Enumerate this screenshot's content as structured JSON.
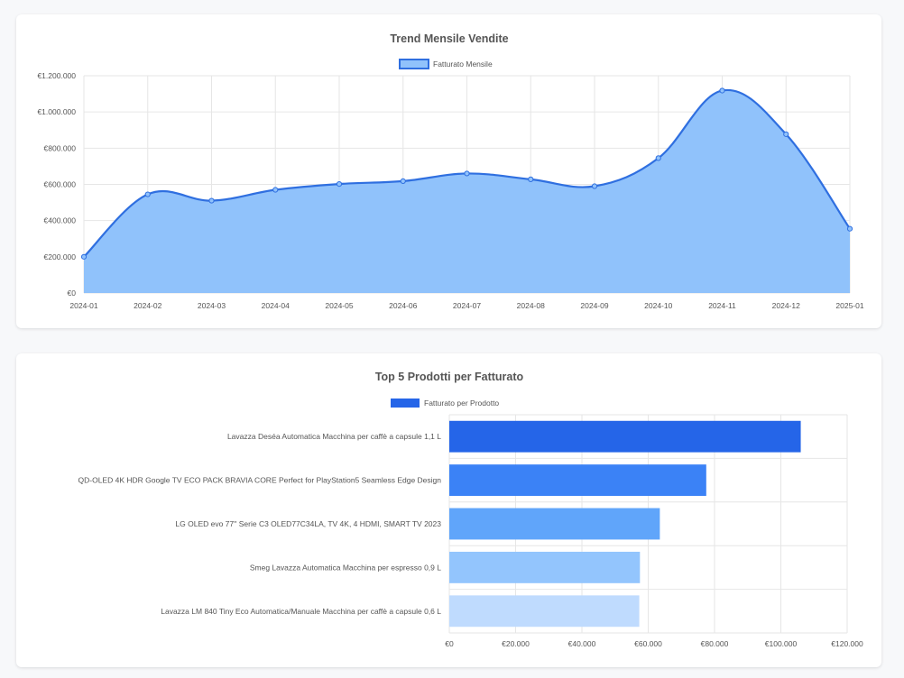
{
  "line_chart": {
    "title": "Trend Mensile Vendite",
    "legend_label": "Fatturato Mensile"
  },
  "bar_chart": {
    "title": "Top 5 Prodotti per Fatturato",
    "legend_label": "Fatturato per Prodotto"
  },
  "colors": {
    "line_stroke": "#2f6fe0",
    "line_fill": "#90c2fb",
    "bars": [
      "#2565e8",
      "#3b82f6",
      "#60a5fa",
      "#93c5fd",
      "#bfdbfe"
    ]
  },
  "chart_data": [
    {
      "type": "area",
      "title": "Trend Mensile Vendite",
      "categories": [
        "2024-01",
        "2024-02",
        "2024-03",
        "2024-04",
        "2024-05",
        "2024-06",
        "2024-07",
        "2024-08",
        "2024-09",
        "2024-10",
        "2024-11",
        "2024-12",
        "2025-01"
      ],
      "series": [
        {
          "name": "Fatturato Mensile",
          "values": [
            200000,
            545000,
            510000,
            570000,
            602000,
            618000,
            660000,
            628000,
            590000,
            745000,
            1118000,
            877000,
            355000
          ]
        }
      ],
      "ylim": [
        0,
        1200000
      ],
      "yticks": [
        "€0",
        "€200.000",
        "€400.000",
        "€600.000",
        "€800.000",
        "€1.000.000",
        "€1.200.000"
      ],
      "grid": true,
      "legend": "top-center"
    },
    {
      "type": "bar",
      "orientation": "horizontal",
      "title": "Top 5 Prodotti per Fatturato",
      "categories": [
        "Lavazza Deséa Automatica Macchina per caffè a capsule 1,1 L",
        "QD-OLED 4K HDR Google TV ECO PACK BRAVIA CORE Perfect for PlayStation5 Seamless Edge Design",
        "LG OLED evo 77'' Serie C3 OLED77C34LA, TV 4K, 4 HDMI, SMART TV 2023",
        "Smeg Lavazza Automatica Macchina per espresso 0,9 L",
        "Lavazza LM 840 Tiny Eco Automatica/Manuale Macchina per caffè a capsule 0,6 L"
      ],
      "series": [
        {
          "name": "Fatturato per Prodotto",
          "values": [
            106000,
            77500,
            63500,
            57500,
            57300
          ]
        }
      ],
      "xlim": [
        0,
        120000
      ],
      "xticks": [
        "€0",
        "€20.000",
        "€40.000",
        "€60.000",
        "€80.000",
        "€100.000",
        "€120.000"
      ],
      "grid": true,
      "legend": "top-center"
    }
  ]
}
